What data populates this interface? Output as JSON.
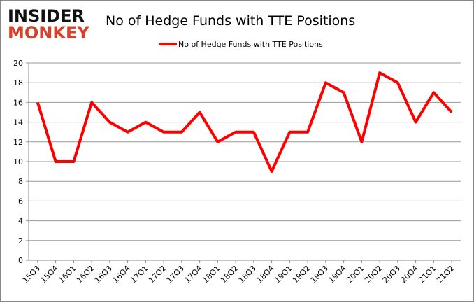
{
  "logo": {
    "line1": "INSIDER",
    "line2": "MONKEY"
  },
  "chart_data": {
    "type": "line",
    "title": "No of Hedge Funds with TTE Positions",
    "categories": [
      "15Q3",
      "15Q4",
      "16Q1",
      "16Q2",
      "16Q3",
      "16Q4",
      "17Q1",
      "17Q2",
      "17Q3",
      "17Q4",
      "18Q1",
      "18Q2",
      "18Q3",
      "18Q4",
      "19Q1",
      "19Q2",
      "19Q3",
      "19Q4",
      "20Q1",
      "20Q2",
      "20Q3",
      "20Q4",
      "21Q1",
      "21Q2"
    ],
    "series": [
      {
        "name": "No of Hedge Funds with TTE Positions",
        "color": "#ff0000",
        "values": [
          16,
          10,
          10,
          16,
          14,
          13,
          14,
          13,
          13,
          15,
          12,
          13,
          13,
          9,
          13,
          13,
          18,
          17,
          12,
          19,
          18,
          14,
          17,
          15
        ]
      }
    ],
    "ylim": [
      0,
      20
    ],
    "yticks": [
      0,
      2,
      4,
      6,
      8,
      10,
      12,
      14,
      16,
      18,
      20
    ],
    "grid": true,
    "legend": "top-center"
  }
}
